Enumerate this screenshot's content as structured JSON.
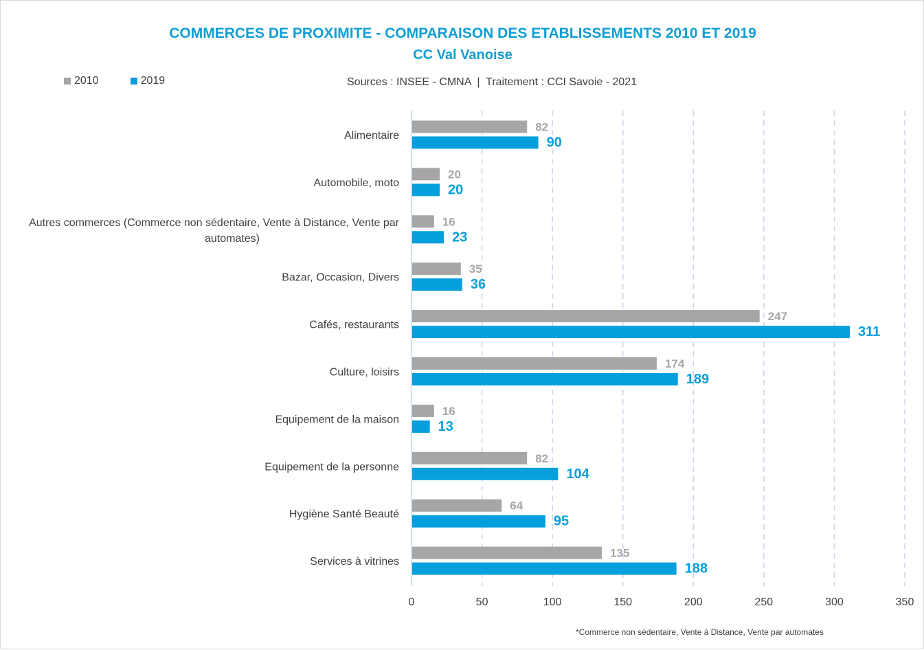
{
  "colors": {
    "s2010": "#a6a6a6",
    "s2019": "#069fdd",
    "title": "#0f9ed5",
    "grid": "#d0d0ea",
    "axis": "#bdd7ee",
    "text": "#404040"
  },
  "header": {
    "title": "COMMERCES DE PROXIMITE - COMPARAISON DES ETABLISSEMENTS 2010 ET 2019",
    "subtitle": "CC Val Vanoise",
    "sources": "Sources : INSEE - CMNA  |  Traitement : CCI Savoie - 2021"
  },
  "footnote": "*Commerce non sédentaire, Vente à Distance, Vente par automates",
  "chart_data": {
    "type": "bar",
    "orientation": "horizontal",
    "title": "COMMERCES DE PROXIMITE - COMPARAISON DES ETABLISSEMENTS 2010 ET 2019",
    "subtitle": "CC Val Vanoise",
    "categories": [
      "Alimentaire",
      "Automobile, moto",
      "Autres commerces (Commerce non sédentaire, Vente à Distance, Vente par automates)",
      "Bazar, Occasion, Divers",
      "Cafés, restaurants",
      "Culture, loisirs",
      "Equipement de la maison",
      "Equipement de la personne",
      "Hygiène Santé Beauté",
      "Services à vitrines"
    ],
    "series": [
      {
        "name": "2010",
        "color": "#a6a6a6",
        "values": [
          82,
          20,
          16,
          35,
          247,
          174,
          16,
          82,
          64,
          135
        ]
      },
      {
        "name": "2019",
        "color": "#069fdd",
        "values": [
          90,
          20,
          23,
          36,
          311,
          189,
          13,
          104,
          95,
          188
        ]
      }
    ],
    "xlim": [
      0,
      350
    ],
    "xticks": [
      0,
      50,
      100,
      150,
      200,
      250,
      300,
      350
    ],
    "grid": "vertical dashed",
    "legend": "top-left",
    "data_labels": true
  }
}
